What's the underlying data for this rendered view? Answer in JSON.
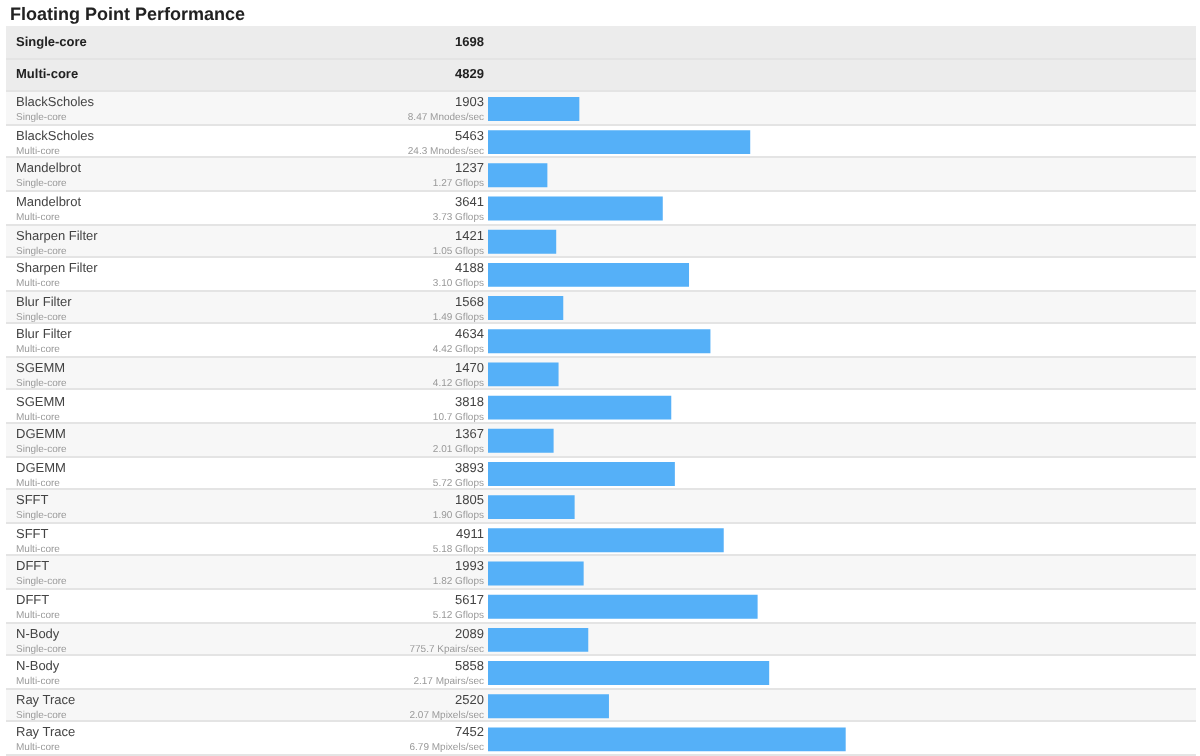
{
  "chart_data": {
    "type": "bar",
    "orientation": "horizontal",
    "title": "Floating Point Performance",
    "tick_labels": false,
    "color": "#55b0f8",
    "data_labels": true,
    "categories": [
      "Single-core",
      "Multi-core",
      "BlackScholes\nSingle-core",
      "BlackScholes\nMulti-core",
      "Mandelbrot\nSingle-core",
      "Mandelbrot\nMulti-core",
      "Sharpen Filter\nSingle-core",
      "Sharpen Filter\nMulti-core",
      "Blur Filter\nSingle-core",
      "Blur Filter\nMulti-core",
      "SGEMM\nSingle-core",
      "SGEMM\nMulti-core",
      "DGEMM\nSingle-core",
      "DGEMM\nMulti-core",
      "SFFT\nSingle-core",
      "SFFT\nMulti-core",
      "DFFT\nSingle-core",
      "DFFT\nMulti-core",
      "N-Body\nSingle-core",
      "N-Body\nMulti-core",
      "Ray Trace\nSingle-core",
      "Ray Trace\nMulti-core"
    ],
    "values": [
      null,
      null,
      1903,
      5463,
      1237,
      3641,
      1421,
      4188,
      1568,
      4634,
      1470,
      3818,
      1367,
      3893,
      1805,
      4911,
      1993,
      5617,
      2089,
      5858,
      2520,
      7452
    ],
    "annotations": [
      "1698",
      "4829",
      "8.47 Mnodes/sec",
      "24.3 Mnodes/sec",
      "1.27 Gflops",
      "3.73 Gflops",
      "1.05 Gflops",
      "3.10 Gflops",
      "1.49 Gflops",
      "4.42 Gflops",
      "4.12 Gflops",
      "10.7 Gflops",
      "2.01 Gflops",
      "5.72 Gflops",
      "1.90 Gflops",
      "5.18 Gflops",
      "1.82 Gflops",
      "5.12 Gflops",
      "775.7 Kpairs/sec",
      "2.17 Mpairs/sec",
      "2.07 Mpixels/sec",
      "6.79 Mpixels/sec"
    ]
  }
}
